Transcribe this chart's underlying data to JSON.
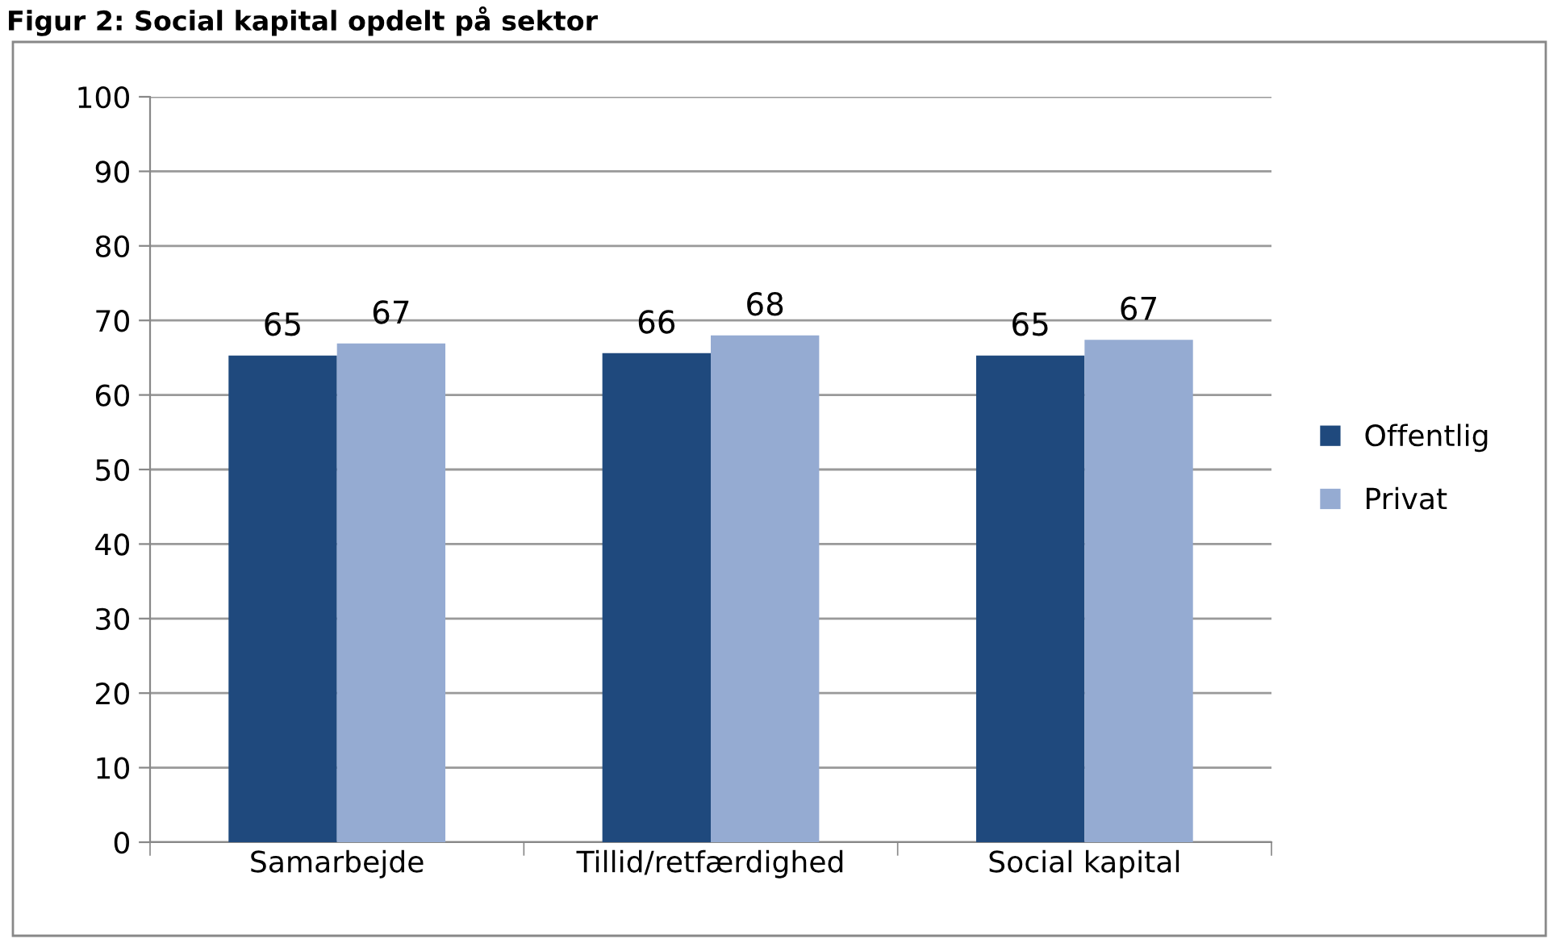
{
  "chart_data": {
    "type": "bar",
    "title": "Figur 2: Social kapital opdelt på sektor",
    "categories": [
      "Samarbejde",
      "Tillid/retfærdighed",
      "Social kapital"
    ],
    "series": [
      {
        "name": "Offentlig",
        "color": "#1f497d",
        "values": [
          65.3,
          65.6,
          65.3
        ],
        "value_labels": [
          "65",
          "66",
          "65"
        ]
      },
      {
        "name": "Privat",
        "color": "#95abd2",
        "values": [
          66.9,
          68.0,
          67.4
        ],
        "value_labels": [
          "67",
          "68",
          "67"
        ]
      }
    ],
    "ylim": [
      0,
      100
    ],
    "yticks": [
      0,
      10,
      20,
      30,
      40,
      50,
      60,
      70,
      80,
      90,
      100
    ],
    "grid": "y",
    "legend": "right"
  }
}
